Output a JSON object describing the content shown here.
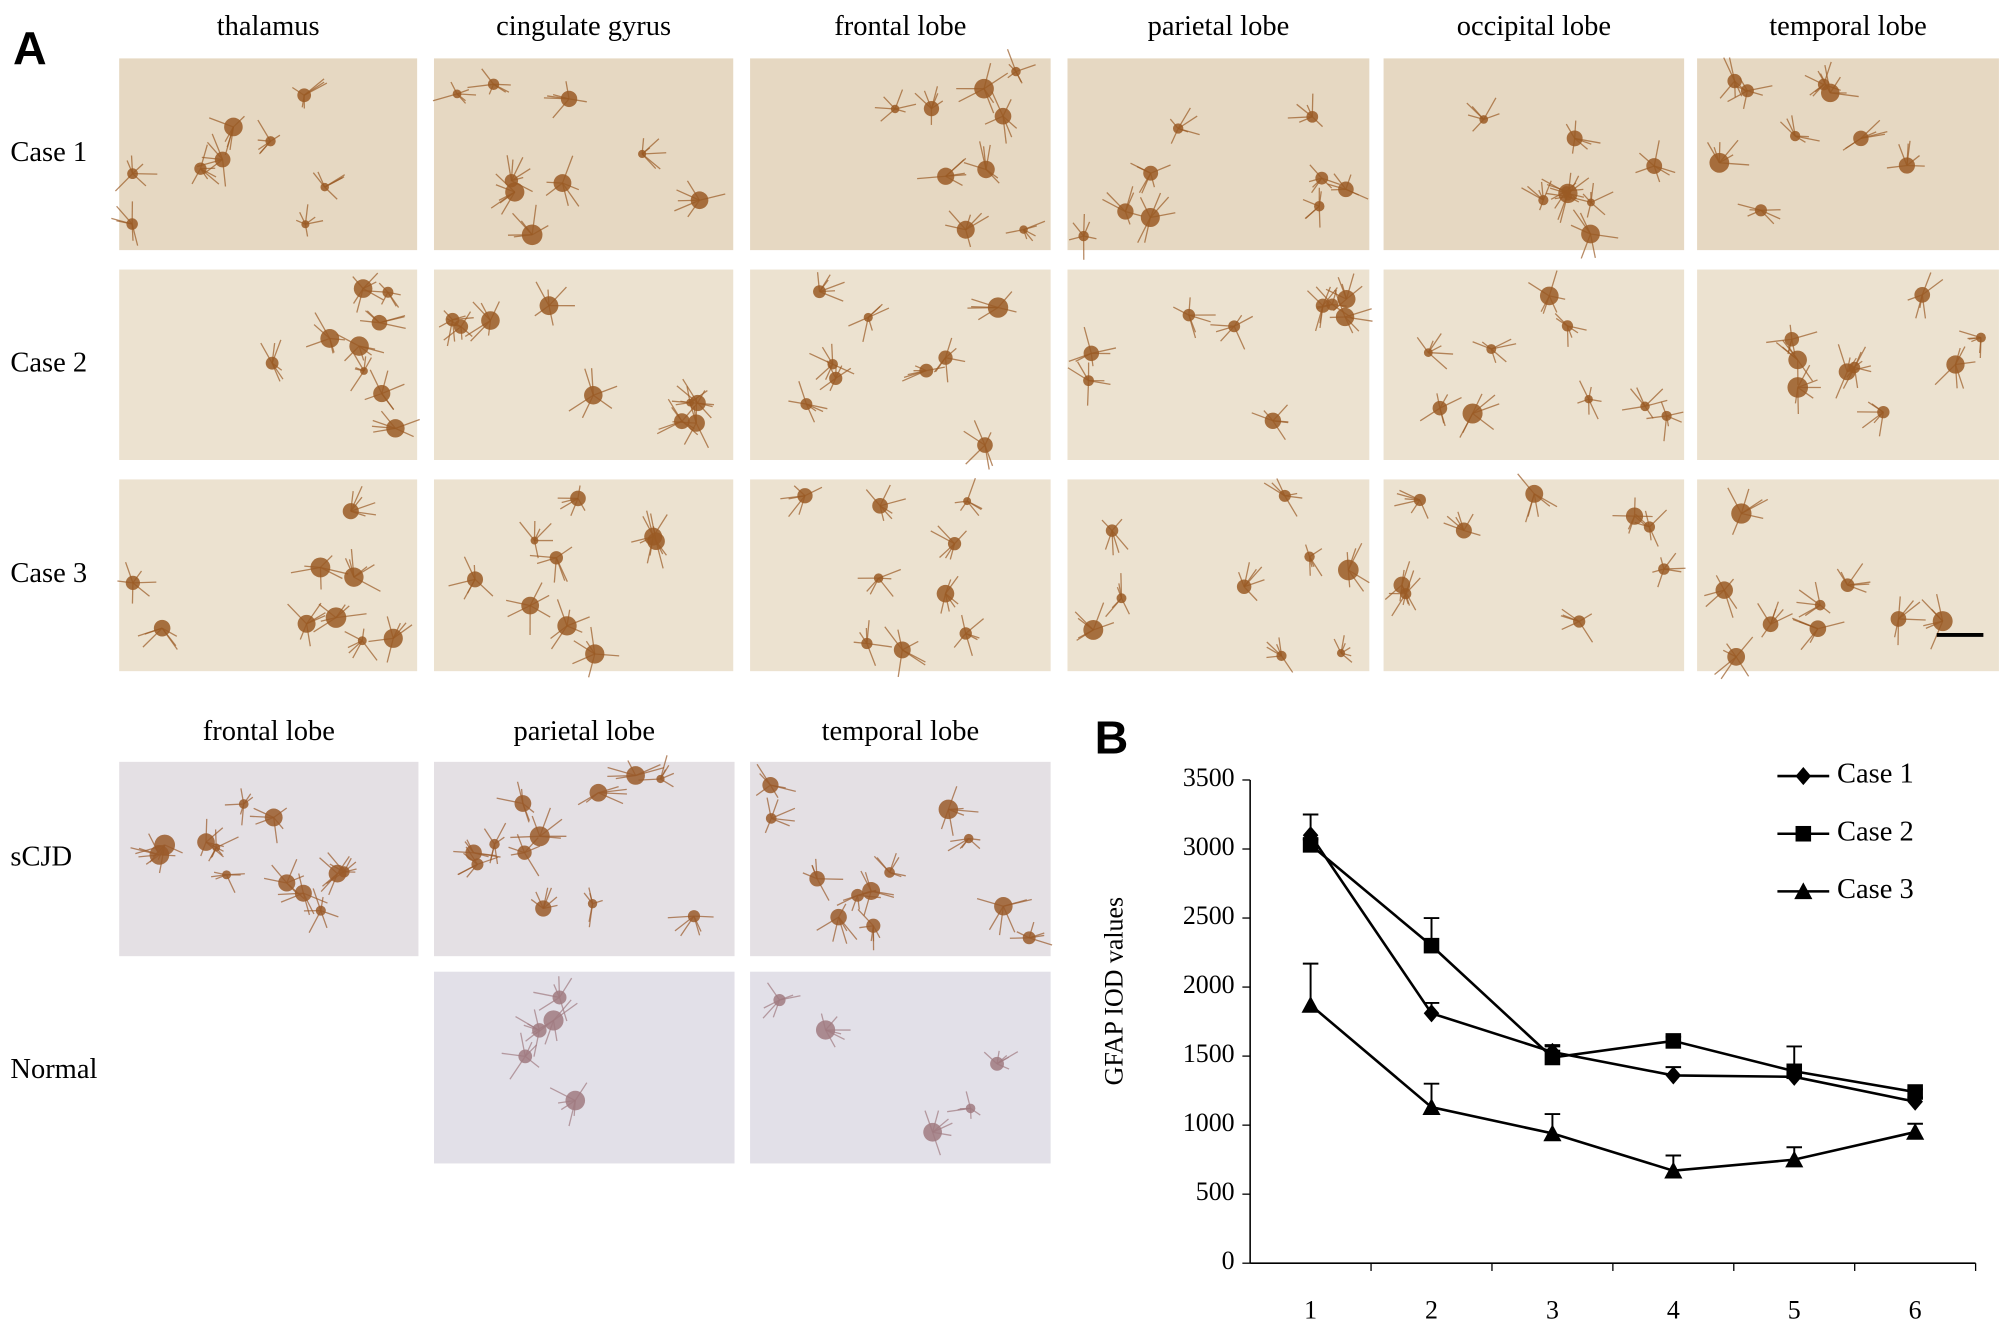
{
  "panel_a": {
    "label": "A",
    "columns": [
      "thalamus",
      "cingulate gyrus",
      "frontal lobe",
      "parietal lobe",
      "occipital lobe",
      "temporal lobe"
    ],
    "rows": [
      "Case 1",
      "Case 2",
      "Case 3"
    ],
    "lower_columns": [
      "frontal lobe",
      "parietal lobe",
      "temporal lobe"
    ],
    "lower_rows": [
      "sCJD",
      "Normal"
    ]
  },
  "chart_data": {
    "type": "line",
    "label": "B",
    "y_label": "GFAP IOD values",
    "categories": [
      "1",
      "2",
      "3",
      "4",
      "5",
      "6"
    ],
    "ylim": [
      0,
      3500
    ],
    "yticks": [
      0,
      500,
      1000,
      1500,
      2000,
      2500,
      3000,
      3500
    ],
    "legend": "top-right",
    "series": [
      {
        "name": "Case 1",
        "color": "#000000",
        "marker": "diamond",
        "values": [
          3100,
          1810,
          1530,
          1360,
          1350,
          1170
        ],
        "error": [
          150,
          75,
          50,
          60,
          20,
          30
        ]
      },
      {
        "name": "Case 2",
        "color": "#000000",
        "marker": "square",
        "values": [
          3030,
          2300,
          1490,
          1610,
          1390,
          1240
        ],
        "error": [
          40,
          200,
          80,
          30,
          180,
          20
        ]
      },
      {
        "name": "Case 3",
        "color": "#000000",
        "marker": "triangle",
        "values": [
          1870,
          1130,
          940,
          670,
          750,
          950
        ],
        "error": [
          300,
          170,
          140,
          110,
          90,
          60
        ]
      }
    ]
  }
}
